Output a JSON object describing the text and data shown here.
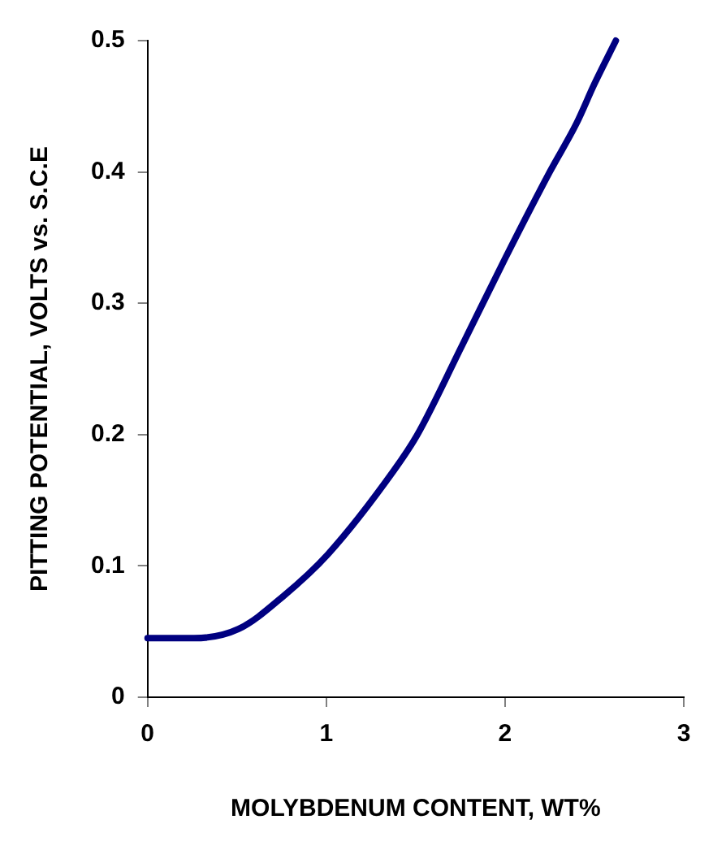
{
  "chart_data": {
    "type": "line",
    "xlabel": "MOLYBDENUM CONTENT, WT%",
    "ylabel": "PITTING POTENTIAL, VOLTS vs. S.C.E",
    "series": [
      {
        "color": "#000080",
        "x": [
          0,
          0.26,
          0.51,
          0.76,
          1.01,
          1.38,
          1.51,
          1.76,
          2.0,
          2.25,
          2.4,
          2.5,
          2.62
        ],
        "values": [
          0.045,
          0.045,
          0.052,
          0.077,
          0.109,
          0.173,
          0.2,
          0.268,
          0.334,
          0.4,
          0.437,
          0.467,
          0.5
        ]
      }
    ],
    "xlim": [
      0,
      3
    ],
    "xticks": [
      0,
      1,
      2,
      3
    ],
    "ylim": [
      0,
      0.5
    ],
    "yticks": [
      0,
      0.1,
      0.2,
      0.3,
      0.4,
      0.5
    ],
    "grid": false,
    "legend": false,
    "marker": "none",
    "line_style": "solid"
  }
}
